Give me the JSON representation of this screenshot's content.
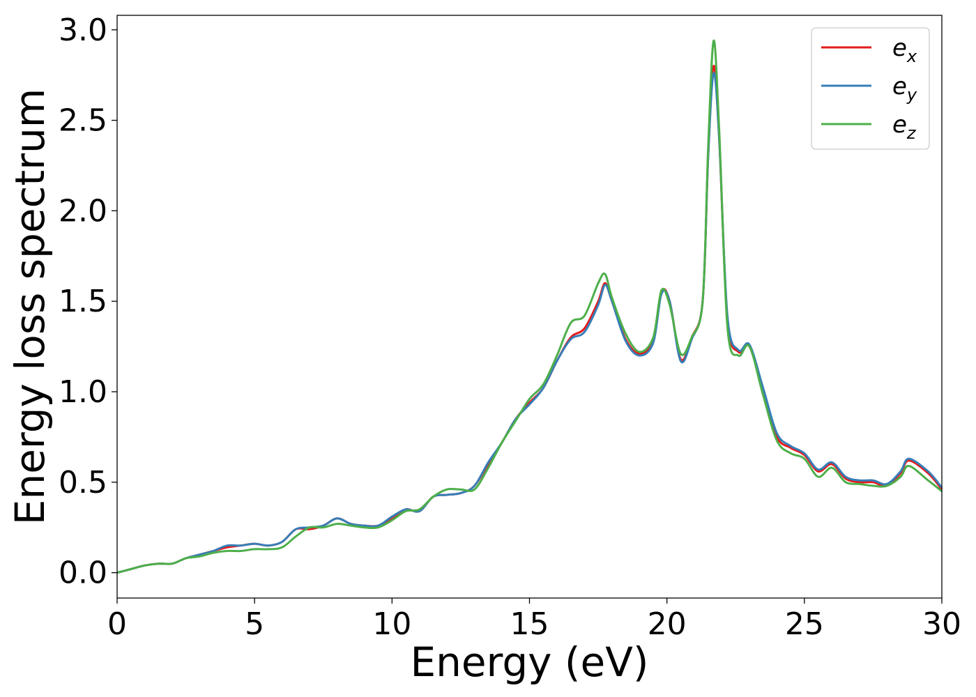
{
  "chart_data": {
    "type": "line",
    "title": "",
    "xlabel": "Energy (eV)",
    "ylabel": "Energy loss spectrum",
    "xlim": [
      0,
      30
    ],
    "ylim": [
      -0.14,
      3.08
    ],
    "xticks": [
      0,
      5,
      10,
      15,
      20,
      25,
      30
    ],
    "xtick_labels": [
      "0",
      "5",
      "10",
      "15",
      "20",
      "25",
      "30"
    ],
    "yticks": [
      0.0,
      0.5,
      1.0,
      1.5,
      2.0,
      2.5,
      3.0
    ],
    "ytick_labels": [
      "0.0",
      "0.5",
      "1.0",
      "1.5",
      "2.0",
      "2.5",
      "3.0"
    ],
    "grid": false,
    "legend_position": "top-right",
    "x": [
      0,
      0.5,
      1,
      1.5,
      2,
      2.5,
      3,
      3.5,
      4,
      4.5,
      5,
      5.5,
      6,
      6.5,
      7,
      7.5,
      8,
      8.5,
      9,
      9.5,
      10,
      10.5,
      11,
      11.5,
      12,
      12.5,
      13,
      13.5,
      14,
      14.5,
      15,
      15.5,
      16,
      16.5,
      17,
      17.5,
      17.75,
      18,
      18.5,
      19,
      19.5,
      19.8,
      20.1,
      20.5,
      20.9,
      21.3,
      21.5,
      21.7,
      21.9,
      22.2,
      22.6,
      23,
      23.5,
      24,
      24.5,
      25,
      25.5,
      26,
      26.5,
      27,
      27.5,
      28,
      28.5,
      28.8,
      29.5,
      30
    ],
    "series": [
      {
        "name": "x",
        "color": "#e41a1c",
        "values": [
          0.0,
          0.02,
          0.04,
          0.05,
          0.05,
          0.08,
          0.1,
          0.12,
          0.14,
          0.15,
          0.16,
          0.15,
          0.17,
          0.24,
          0.24,
          0.26,
          0.3,
          0.27,
          0.26,
          0.26,
          0.3,
          0.35,
          0.34,
          0.42,
          0.43,
          0.44,
          0.48,
          0.6,
          0.72,
          0.85,
          0.94,
          1.02,
          1.17,
          1.3,
          1.35,
          1.5,
          1.6,
          1.5,
          1.29,
          1.21,
          1.28,
          1.55,
          1.5,
          1.18,
          1.3,
          1.5,
          2.3,
          2.8,
          2.4,
          1.4,
          1.22,
          1.25,
          1.0,
          0.75,
          0.69,
          0.65,
          0.56,
          0.6,
          0.52,
          0.5,
          0.5,
          0.48,
          0.55,
          0.62,
          0.55,
          0.46
        ]
      },
      {
        "name": "y",
        "color": "#377eb8",
        "values": [
          0.0,
          0.02,
          0.04,
          0.05,
          0.05,
          0.08,
          0.1,
          0.12,
          0.15,
          0.15,
          0.16,
          0.15,
          0.17,
          0.24,
          0.25,
          0.26,
          0.3,
          0.27,
          0.26,
          0.26,
          0.31,
          0.35,
          0.34,
          0.42,
          0.43,
          0.44,
          0.48,
          0.61,
          0.72,
          0.85,
          0.93,
          1.02,
          1.17,
          1.29,
          1.33,
          1.48,
          1.59,
          1.5,
          1.28,
          1.2,
          1.27,
          1.54,
          1.5,
          1.17,
          1.29,
          1.5,
          2.3,
          2.76,
          2.4,
          1.42,
          1.23,
          1.26,
          1.02,
          0.77,
          0.7,
          0.66,
          0.57,
          0.61,
          0.53,
          0.51,
          0.51,
          0.49,
          0.56,
          0.63,
          0.56,
          0.47
        ]
      },
      {
        "name": "z",
        "color": "#4daf4a",
        "values": [
          0.0,
          0.02,
          0.04,
          0.05,
          0.05,
          0.08,
          0.09,
          0.11,
          0.12,
          0.12,
          0.13,
          0.13,
          0.14,
          0.2,
          0.25,
          0.25,
          0.27,
          0.26,
          0.25,
          0.25,
          0.29,
          0.34,
          0.35,
          0.42,
          0.46,
          0.46,
          0.46,
          0.58,
          0.72,
          0.84,
          0.96,
          1.04,
          1.2,
          1.38,
          1.42,
          1.6,
          1.65,
          1.52,
          1.32,
          1.22,
          1.3,
          1.56,
          1.48,
          1.21,
          1.3,
          1.5,
          2.35,
          2.94,
          2.45,
          1.36,
          1.2,
          1.25,
          0.98,
          0.73,
          0.66,
          0.63,
          0.53,
          0.58,
          0.5,
          0.49,
          0.48,
          0.48,
          0.53,
          0.59,
          0.51,
          0.45
        ]
      }
    ]
  },
  "legend": {
    "items": [
      {
        "base": "e",
        "sub": "x"
      },
      {
        "base": "e",
        "sub": "y"
      },
      {
        "base": "e",
        "sub": "z"
      }
    ]
  }
}
